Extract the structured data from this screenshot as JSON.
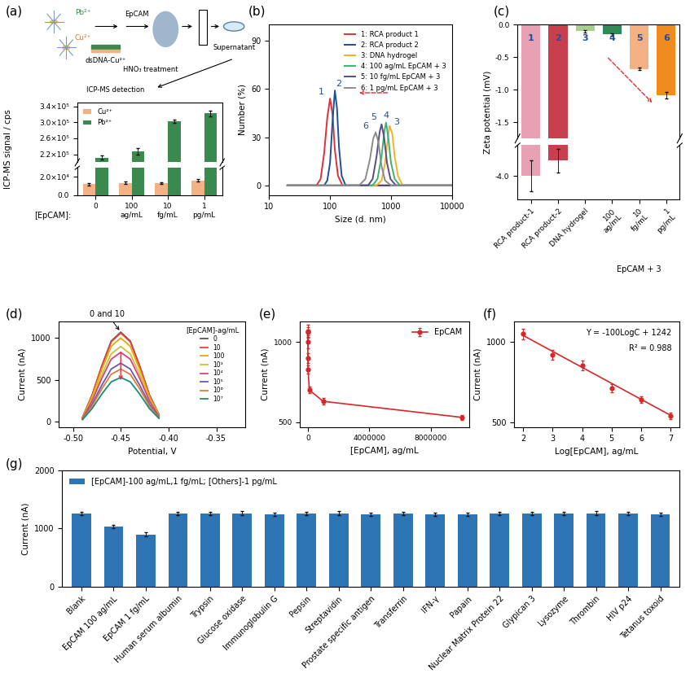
{
  "schematic": {
    "labels": [
      "Pb²⁺",
      "Cu²⁺",
      "EpCAM",
      "dsDNA-Cu²⁺",
      "Supernatant",
      "HNO₃ treatment",
      "ICP-MS detection"
    ]
  },
  "chart_data": [
    {
      "type": "bar",
      "title": "(a)",
      "xlabel": "[EpCAM]:",
      "ylabel": "ICP-MS signal / cps",
      "categories": [
        "0",
        "100\nag/mL",
        "10\nfg/mL",
        "1\npg/mL"
      ],
      "series": [
        {
          "name": "Cu²⁺",
          "color": "#f4b183",
          "values": [
            12000,
            13500,
            13000,
            16000
          ],
          "errors": [
            1500,
            1500,
            1200,
            1500
          ]
        },
        {
          "name": "Pb²⁺",
          "color": "#3a8a4f",
          "values": [
            212000,
            228000,
            302000,
            322000
          ],
          "errors": [
            5000,
            8000,
            4000,
            7000
          ]
        }
      ],
      "axes": [
        {
          "ylim": [
            200000,
            350000
          ],
          "yticks": [
            {
              "value": 220000,
              "label": "2.2×10⁵"
            },
            {
              "value": 260000,
              "label": "2.6×10⁵"
            },
            {
              "value": 300000,
              "label": "3.0×10⁵"
            },
            {
              "value": 340000,
              "label": "3.4×10⁵"
            }
          ]
        },
        {
          "ylim": [
            0,
            30000
          ],
          "yticks": [
            {
              "value": 0,
              "label": "0.0"
            },
            {
              "value": 20000,
              "label": "2.0×10⁴"
            }
          ]
        }
      ],
      "legend": "upper left"
    },
    {
      "type": "line",
      "title": "(b)",
      "xlabel": "Size (d. nm)",
      "ylabel": "Number (%)",
      "log": "x",
      "xlim": [
        10,
        10000
      ],
      "xticks": [
        10,
        100,
        1000,
        10000
      ],
      "ylim": [
        -6,
        100
      ],
      "yticks": [
        0,
        30,
        60,
        90
      ],
      "legend": "upper right",
      "series": [
        {
          "name": "1: RCA product 1",
          "color": "#e0303a",
          "peak_label": "1",
          "x": [
            20,
            60,
            70,
            80,
            90,
            100,
            110,
            120,
            135,
            160,
            10000
          ],
          "values": [
            0,
            0,
            4,
            20,
            42,
            54,
            44,
            22,
            6,
            0,
            0
          ]
        },
        {
          "name": "2: RCA product 2",
          "color": "#1f4e9c",
          "peak_label": "2",
          "x": [
            20,
            80,
            90,
            100,
            110,
            120,
            130,
            140,
            155,
            180,
            10000
          ],
          "values": [
            0,
            0,
            3,
            14,
            40,
            59,
            48,
            24,
            6,
            0,
            0
          ]
        },
        {
          "name": "3: DNA hydrogel",
          "color": "#f0b323",
          "peak_label": "3",
          "x": [
            20,
            580,
            700,
            800,
            900,
            950,
            1050,
            1150,
            1300,
            1550,
            10000
          ],
          "values": [
            0,
            0,
            3,
            14,
            31,
            37,
            32,
            18,
            6,
            0,
            0
          ]
        },
        {
          "name": "4: 100 ag/mL EpCAM + 3",
          "color": "#3cb371",
          "peak_label": "4",
          "x": [
            20,
            500,
            600,
            700,
            780,
            830,
            900,
            1000,
            1150,
            1400,
            10000
          ],
          "values": [
            0,
            0,
            4,
            18,
            34,
            39,
            30,
            14,
            4,
            0,
            0
          ]
        },
        {
          "name": "5: 10 fg/mL EpCAM + 3",
          "color": "#5b4a8b",
          "peak_label": "5",
          "x": [
            20,
            420,
            500,
            580,
            650,
            700,
            770,
            860,
            980,
            1200,
            10000
          ],
          "values": [
            0,
            0,
            4,
            18,
            33,
            38,
            30,
            14,
            4,
            0,
            0
          ]
        },
        {
          "name": "6: 1 pg/mL EpCAM + 3",
          "color": "#8c8c8c",
          "peak_label": "6",
          "x": [
            20,
            300,
            380,
            450,
            510,
            560,
            620,
            700,
            800,
            1000,
            10000
          ],
          "values": [
            0,
            0,
            4,
            16,
            29,
            33,
            27,
            12,
            3,
            0,
            0
          ]
        }
      ]
    },
    {
      "type": "bar",
      "title": "(c)",
      "ylabel": "Zeta potential (mV)",
      "categories": [
        "RCA product-1",
        "RCA product-2",
        "DNA hydrogel",
        "100\nag/mL",
        "10\nfg/mL",
        "1\npg/mL"
      ],
      "values": [
        -4.0,
        -3.8,
        -0.1,
        -0.15,
        -0.68,
        -1.08
      ],
      "errors": [
        0.2,
        0.15,
        0.02,
        0.02,
        0.02,
        0.05
      ],
      "colors": [
        "#e8a0b4",
        "#c8404e",
        "#a8d08d",
        "#2e8b57",
        "#f4b183",
        "#f08c1e"
      ],
      "bar_labels": [
        "1",
        "2",
        "3",
        "4",
        "5",
        "6"
      ],
      "annotations": [
        "EpCAM + 3"
      ],
      "axes": [
        {
          "ylim": [
            -1.75,
            0
          ],
          "yticks": [
            0.0,
            -0.5,
            -1.0,
            -1.5
          ]
        },
        {
          "ylim": [
            -4.3,
            -3.6
          ],
          "yticks": [
            -4.0
          ]
        }
      ]
    },
    {
      "type": "line",
      "title": "(d)",
      "xlabel": "Potential, V",
      "ylabel": "Current (nA)",
      "x": [
        -0.49,
        -0.48,
        -0.47,
        -0.46,
        -0.45,
        -0.44,
        -0.43,
        -0.42,
        -0.41
      ],
      "xlim": [
        -0.515,
        -0.32
      ],
      "xticks": [
        {
          "value": -0.5,
          "label": "-0.50"
        },
        -0.45,
        {
          "value": -0.4,
          "label": "-0.40"
        },
        -0.35
      ],
      "ylim": [
        -60,
        1200
      ],
      "yticks": [
        0,
        500,
        1000
      ],
      "legend": "upper right",
      "legend_title": "[EpCAM]-ag/mL",
      "annotations": [
        "0 and 10"
      ],
      "series": [
        {
          "name": "0",
          "color": "#555555",
          "values": [
            54,
            321,
            663,
            963,
            1070,
            963,
            663,
            321,
            86
          ]
        },
        {
          "name": "10",
          "color": "#e8413c",
          "values": [
            53,
            318,
            657,
            954,
            1060,
            954,
            657,
            318,
            85
          ]
        },
        {
          "name": "100",
          "color": "#f0a500",
          "values": [
            50,
            300,
            620,
            900,
            1000,
            900,
            620,
            300,
            80
          ]
        },
        {
          "name": "10³",
          "color": "#c9c23a",
          "values": [
            45,
            270,
            558,
            810,
            900,
            810,
            558,
            270,
            72
          ]
        },
        {
          "name": "10⁴",
          "color": "#d4447c",
          "values": [
            42,
            249,
            515,
            747,
            830,
            747,
            515,
            249,
            66
          ]
        },
        {
          "name": "10⁵",
          "color": "#6a5aa8",
          "values": [
            35,
            210,
            434,
            630,
            700,
            630,
            434,
            210,
            56
          ]
        },
        {
          "name": "10⁶",
          "color": "#e07b39",
          "values": [
            32,
            189,
            391,
            567,
            630,
            567,
            391,
            189,
            50
          ]
        },
        {
          "name": "10⁷",
          "color": "#1a8a7a",
          "values": [
            27,
            159,
            329,
            477,
            530,
            477,
            329,
            159,
            42
          ]
        }
      ]
    },
    {
      "type": "line",
      "title": "(e)",
      "xlabel": "[EpCAM], ag/mL",
      "ylabel": "Current (nA)",
      "x": [
        0,
        10,
        100,
        1000,
        10000,
        100000,
        1000000,
        10000000
      ],
      "xlim": [
        -500000,
        10500000
      ],
      "xticks": [
        0,
        4000000,
        8000000
      ],
      "ylim": [
        470,
        1130
      ],
      "yticks": [
        500,
        1000
      ],
      "legend": "upper right",
      "series": [
        {
          "name": "EpCAM",
          "color": "#d62728",
          "marker": "o",
          "line_style": "solid",
          "values": [
            1070,
            1060,
            1000,
            900,
            830,
            700,
            630,
            530
          ],
          "errors": [
            40,
            35,
            40,
            30,
            25,
            20,
            20,
            15
          ]
        }
      ]
    },
    {
      "type": "scatter",
      "title": "(f)",
      "xlabel": "Log[EpCAM], ag/mL",
      "ylabel": "Current (nA)",
      "x": [
        2,
        3,
        4,
        5,
        6,
        7
      ],
      "values": [
        1050,
        920,
        855,
        710,
        640,
        540
      ],
      "errors": [
        35,
        30,
        30,
        25,
        20,
        20
      ],
      "color": "#d62728",
      "marker": "o",
      "xlim": [
        1.7,
        7.3
      ],
      "xticks": [
        2,
        3,
        4,
        5,
        6,
        7
      ],
      "ylim": [
        470,
        1130
      ],
      "yticks": [
        500,
        1000
      ],
      "fit": {
        "slope": -100,
        "intercept": 1242
      },
      "annotations": [
        "Y = -100LogC + 1242",
        "R² = 0.988"
      ]
    },
    {
      "type": "bar",
      "title": "(g)",
      "ylabel": "Current (nA)",
      "categories": [
        "Blank",
        "EpCAM 100 ag/mL",
        "EpCAM 1 fg/mL",
        "Human serum albumin",
        "Trypsin",
        "Glucose oxidase",
        "Immunoglobulin G",
        "Pepsin",
        "Streptavidin",
        "Prostate specific antigen",
        "Transferrin",
        "IFN-γ",
        "Papain",
        "Nuclear Matrix Protein 22",
        "Glypican 3",
        "Lysozyme",
        "Thrombin",
        "HIV p24",
        "Tetanus toxoid"
      ],
      "values": [
        1260,
        1035,
        900,
        1260,
        1255,
        1265,
        1250,
        1255,
        1265,
        1250,
        1255,
        1250,
        1245,
        1260,
        1255,
        1260,
        1265,
        1255,
        1250
      ],
      "errors": [
        30,
        30,
        30,
        30,
        30,
        30,
        30,
        30,
        30,
        30,
        30,
        30,
        30,
        30,
        30,
        30,
        30,
        30,
        30
      ],
      "series_name": "[EpCAM]-100 ag/mL,1 fg/mL; [Others]-1 pg/mL",
      "color": "#2e75b6",
      "ylim": [
        0,
        2000
      ],
      "yticks": [
        0,
        1000,
        2000
      ],
      "legend": "upper left"
    }
  ]
}
